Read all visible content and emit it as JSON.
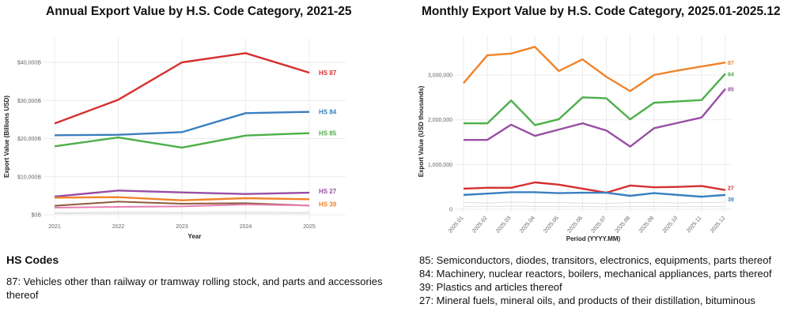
{
  "chart_data": [
    {
      "type": "line",
      "title": "Annual Export Value by H.S. Code Category, 2021-25",
      "xlabel": "Year",
      "ylabel": "Export Value (Billions USD)",
      "x": [
        "2021",
        "2022",
        "2023",
        "2024",
        "2025"
      ],
      "ylim": [
        0,
        45000
      ],
      "yticks": [
        0,
        10000,
        20000,
        30000,
        40000
      ],
      "ytick_labels": [
        "$0B",
        "$10,000B",
        "$20,000B",
        "$30,000B",
        "$40,000B"
      ],
      "grid": true,
      "series": [
        {
          "name": "HS 87",
          "color": "#d62f2f",
          "values": [
            23970,
            30190,
            40000,
            42420,
            37300
          ]
        },
        {
          "name": "HS 84",
          "color": "#3a7fbf",
          "values": [
            20860,
            21000,
            21690,
            26670,
            27010
          ]
        },
        {
          "name": "HS 85",
          "color": "#4daf4a",
          "values": [
            17960,
            20310,
            17620,
            20800,
            21420
          ]
        },
        {
          "name": "HS 27",
          "color": "#984ea3",
          "values": [
            4770,
            6360,
            5870,
            5460,
            5800
          ]
        },
        {
          "name": "HS 39",
          "color": "#f0832a",
          "values": [
            4490,
            4630,
            3800,
            4350,
            4080
          ]
        },
        {
          "color": "#8c5a3c",
          "values": [
            2350,
            3450,
            2900,
            3040,
            2420
          ]
        },
        {
          "color": "#e77fb4",
          "values": [
            1870,
            2070,
            2210,
            2690,
            2420
          ]
        },
        {
          "color": "#dddddd",
          "values": [
            600,
            700,
            650,
            700,
            650
          ]
        },
        {
          "color": "#dddddd",
          "values": [
            300,
            350,
            330,
            360,
            340
          ]
        }
      ]
    },
    {
      "type": "line",
      "title": "Monthly Export Value by H.S. Code Category, 2025.01-2025.12",
      "xlabel": "Period (YYYY.MM)",
      "ylabel": "Export Value (USD thousands)",
      "x": [
        "2025.01",
        "2025.02",
        "2025.03",
        "2025.04",
        "2025.05",
        "2025.06",
        "2025.07",
        "2025.08",
        "2025.09",
        "2025.10",
        "2025.11",
        "2025.12"
      ],
      "ylim": [
        0,
        3700000
      ],
      "yticks": [
        0,
        1000000,
        2000000,
        3000000
      ],
      "ytick_labels": [
        "0",
        "1,000,000",
        "2,000,000",
        "3,000,000"
      ],
      "grid": true,
      "series": [
        {
          "name": "87",
          "color": "#f0832a",
          "values": [
            2820000,
            3440000,
            3480000,
            3630000,
            3090000,
            3350000,
            2960000,
            2640000,
            3000000,
            3100000,
            3190000,
            3280000
          ]
        },
        {
          "name": "84",
          "color": "#4daf4a",
          "values": [
            1920000,
            1920000,
            2430000,
            1880000,
            2010000,
            2500000,
            2480000,
            2010000,
            2380000,
            2410000,
            2440000,
            3030000
          ]
        },
        {
          "name": "85",
          "color": "#984ea3",
          "values": [
            1550000,
            1550000,
            1890000,
            1640000,
            1780000,
            1920000,
            1760000,
            1400000,
            1810000,
            1930000,
            2050000,
            2690000
          ]
        },
        {
          "name": "27",
          "color": "#d62f2f",
          "values": [
            460000,
            480000,
            480000,
            600000,
            550000,
            460000,
            370000,
            530000,
            490000,
            500000,
            520000,
            430000
          ]
        },
        {
          "name": "39",
          "color": "#3a7fbf",
          "values": [
            320000,
            350000,
            380000,
            380000,
            360000,
            370000,
            370000,
            300000,
            360000,
            320000,
            280000,
            320000
          ]
        },
        {
          "color": "#dddddd",
          "values": [
            150000,
            140000,
            160000,
            150000,
            150000,
            140000,
            130000,
            150000,
            150000,
            140000,
            150000,
            160000
          ]
        },
        {
          "color": "#dddddd",
          "values": [
            60000,
            60000,
            70000,
            65000,
            60000,
            60000,
            55000,
            60000,
            65000,
            60000,
            60000,
            65000
          ]
        }
      ]
    }
  ],
  "notes": {
    "heading": "HS Codes",
    "left": [
      "87: Vehicles other than railway or tramway rolling stock, and parts and accessories",
      "thereof"
    ],
    "right": [
      "85: Semiconductors, diodes, transitors, electronics, equipments, parts thereof",
      "84: Machinery, nuclear reactors, boilers, mechanical appliances, parts thereof",
      "39: Plastics and articles thereof",
      "27: Mineral fuels, mineral oils, and products of their distillation, bituminous"
    ]
  }
}
